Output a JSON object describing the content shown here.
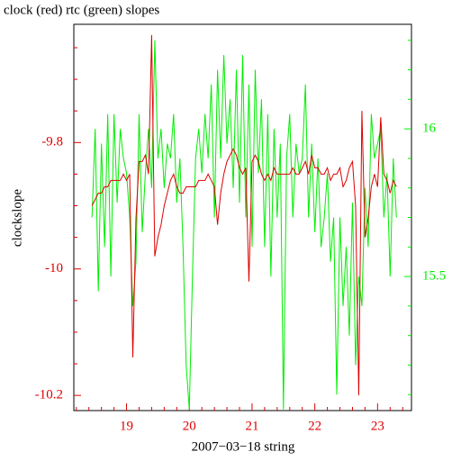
{
  "chart_data": {
    "type": "line",
    "title": "clock (red) rtc (green) slopes",
    "xlabel": "2007−03−18 string",
    "ylabel": "clockslope",
    "xlim": [
      18.16,
      23.54
    ],
    "xticks": [
      19,
      20,
      21,
      22,
      23
    ],
    "xminor": [
      18.2,
      18.4,
      18.6,
      18.8,
      19.2,
      19.4,
      19.6,
      19.8,
      20.2,
      20.4,
      20.6,
      20.8,
      21.2,
      21.4,
      21.6,
      21.8,
      22.2,
      22.4,
      22.6,
      22.8,
      23.2,
      23.4
    ],
    "ylim": [
      -10.224,
      -9.613
    ],
    "yticks": [
      -10.2,
      -10,
      -9.8
    ],
    "yminor": [
      -10.15,
      -10.1,
      -10.05,
      -9.95,
      -9.9,
      -9.85,
      -9.75,
      -9.7,
      -9.65
    ],
    "y2lim": [
      15.046,
      16.354
    ],
    "y2ticks": [
      15.5,
      16
    ],
    "y2minor": [
      15.1,
      15.2,
      15.3,
      15.4,
      15.6,
      15.7,
      15.8,
      15.9,
      16.1,
      16.2,
      16.3
    ],
    "x": [
      18.45,
      18.5,
      18.55,
      18.6,
      18.65,
      18.7,
      18.75,
      18.8,
      18.85,
      18.9,
      18.95,
      19.0,
      19.05,
      19.1,
      19.15,
      19.2,
      19.25,
      19.3,
      19.35,
      19.4,
      19.45,
      19.5,
      19.55,
      19.6,
      19.65,
      19.7,
      19.75,
      19.8,
      19.85,
      19.9,
      19.95,
      20.0,
      20.05,
      20.1,
      20.15,
      20.2,
      20.25,
      20.3,
      20.35,
      20.4,
      20.45,
      20.5,
      20.55,
      20.6,
      20.65,
      20.7,
      20.75,
      20.8,
      20.85,
      20.9,
      20.95,
      21.0,
      21.05,
      21.1,
      21.15,
      21.2,
      21.25,
      21.3,
      21.35,
      21.4,
      21.45,
      21.5,
      21.55,
      21.6,
      21.65,
      21.7,
      21.75,
      21.8,
      21.85,
      21.9,
      21.95,
      22.0,
      22.05,
      22.1,
      22.15,
      22.2,
      22.25,
      22.3,
      22.35,
      22.4,
      22.45,
      22.5,
      22.55,
      22.6,
      22.65,
      22.7,
      22.75,
      22.8,
      22.85,
      22.9,
      22.95,
      23.0,
      23.05,
      23.1,
      23.15,
      23.2,
      23.25,
      23.3
    ],
    "series": [
      {
        "name": "clock",
        "color": "#dd0000",
        "axis": "y",
        "values": [
          -9.9,
          -9.89,
          -9.88,
          -9.88,
          -9.87,
          -9.87,
          -9.86,
          -9.86,
          -9.86,
          -9.86,
          -9.85,
          -9.86,
          -9.85,
          -10.14,
          -9.92,
          -9.83,
          -9.83,
          -9.82,
          -9.85,
          -9.63,
          -9.98,
          -9.95,
          -9.93,
          -9.9,
          -9.88,
          -9.86,
          -9.85,
          -9.87,
          -9.88,
          -9.88,
          -9.87,
          -9.87,
          -9.87,
          -9.87,
          -9.86,
          -9.86,
          -9.86,
          -9.85,
          -9.86,
          -9.87,
          -9.93,
          -9.88,
          -9.85,
          -9.83,
          -9.82,
          -9.81,
          -9.82,
          -9.84,
          -9.85,
          -9.84,
          -10.02,
          -9.83,
          -9.82,
          -9.83,
          -9.85,
          -9.86,
          -9.85,
          -9.86,
          -9.84,
          -9.85,
          -9.85,
          -9.85,
          -9.85,
          -9.85,
          -9.84,
          -9.85,
          -9.85,
          -9.84,
          -9.83,
          -9.85,
          -9.82,
          -9.84,
          -9.84,
          -9.85,
          -9.85,
          -9.84,
          -9.86,
          -9.85,
          -9.85,
          -9.84,
          -9.87,
          -9.86,
          -9.84,
          -9.83,
          -9.9,
          -10.2,
          -9.75,
          -9.95,
          -9.92,
          -9.87,
          -9.85,
          -9.87,
          -9.76,
          -9.85,
          -9.86,
          -9.88,
          -9.86,
          -9.87
        ]
      },
      {
        "name": "rtc",
        "color": "#00ee00",
        "axis": "y2",
        "values": [
          15.7,
          16.0,
          15.45,
          15.95,
          15.6,
          16.05,
          15.5,
          16.05,
          15.75,
          16.0,
          15.9,
          15.85,
          15.7,
          15.4,
          15.55,
          16.05,
          15.65,
          15.85,
          16.0,
          15.8,
          16.3,
          15.9,
          16.0,
          15.8,
          15.95,
          15.9,
          16.05,
          15.75,
          15.9,
          15.6,
          15.2,
          15.05,
          15.5,
          15.9,
          16.0,
          15.85,
          16.05,
          15.9,
          16.15,
          15.7,
          16.2,
          15.9,
          16.25,
          15.95,
          16.1,
          15.8,
          16.2,
          15.75,
          16.25,
          15.7,
          16.15,
          15.6,
          16.2,
          15.85,
          16.1,
          15.6,
          16.05,
          15.5,
          16.0,
          15.7,
          15.95,
          15.05,
          15.9,
          16.05,
          15.7,
          15.95,
          15.85,
          15.9,
          16.15,
          15.7,
          15.95,
          15.65,
          15.9,
          15.6,
          15.7,
          15.85,
          15.55,
          15.7,
          15.1,
          15.7,
          15.4,
          15.6,
          15.3,
          15.75,
          15.2,
          15.5,
          15.4,
          15.8,
          15.6,
          16.05,
          15.9,
          15.95,
          16.0,
          15.7,
          15.85,
          15.5,
          15.9,
          15.7
        ]
      }
    ]
  }
}
